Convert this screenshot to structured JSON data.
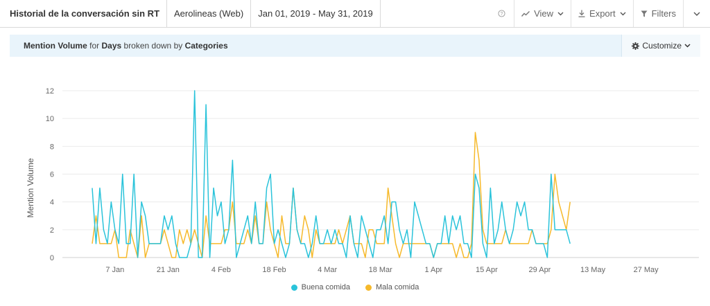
{
  "topbar": {
    "title": "Historial de la conversación sin RT",
    "source": "Aerolineas (Web)",
    "date_range": "Jan 01, 2019 - May 31, 2019",
    "help_icon": "?",
    "view_label": "View",
    "export_label": "Export",
    "filters_label": "Filters"
  },
  "subheader": {
    "metric": "Mention Volume",
    "for_text": "for",
    "period": "Days",
    "broken_text": "broken down by",
    "dimension": "Categories",
    "customize_label": "Customize"
  },
  "icons": {
    "help": "help-circle-icon",
    "view": "line-chart-icon",
    "export": "download-icon",
    "filters": "funnel-icon",
    "customize": "gear-icon",
    "chevron": "chevron-down-icon"
  },
  "chart_data": {
    "type": "line",
    "title": "",
    "xlabel": "",
    "ylabel": "Mention Volume",
    "ylim": [
      0,
      12
    ],
    "y_ticks": [
      0,
      2,
      4,
      6,
      8,
      10,
      12
    ],
    "x_start": "2019-01-01",
    "x_ticks": [
      {
        "label": "7 Jan",
        "date": "2019-01-07"
      },
      {
        "label": "21 Jan",
        "date": "2019-01-21"
      },
      {
        "label": "4 Feb",
        "date": "2019-02-04"
      },
      {
        "label": "18 Feb",
        "date": "2019-02-18"
      },
      {
        "label": "4 Mar",
        "date": "2019-03-04"
      },
      {
        "label": "18 Mar",
        "date": "2019-03-18"
      },
      {
        "label": "1 Apr",
        "date": "2019-04-01"
      },
      {
        "label": "15 Apr",
        "date": "2019-04-15"
      },
      {
        "label": "29 Apr",
        "date": "2019-04-29"
      },
      {
        "label": "13 May",
        "date": "2019-05-13"
      },
      {
        "label": "27 May",
        "date": "2019-05-27"
      }
    ],
    "grid": true,
    "legend_position": "bottom-center",
    "series": [
      {
        "name": "Buena comida",
        "color": "#2ac3da",
        "values": [
          5,
          1,
          5,
          2,
          1,
          4,
          2,
          1,
          6,
          1,
          1,
          6,
          0,
          4,
          3,
          1,
          1,
          1,
          1,
          3,
          2,
          3,
          1,
          0,
          0,
          0,
          1,
          12,
          0,
          0,
          11,
          0,
          5,
          3,
          4,
          1,
          2,
          7,
          0,
          1,
          2,
          3,
          1,
          4,
          1,
          1,
          5,
          6,
          1,
          2,
          1,
          0,
          1,
          5,
          2,
          1,
          1,
          0,
          1,
          3,
          1,
          1,
          2,
          1,
          2,
          1,
          1,
          0,
          3,
          1,
          0,
          3,
          2,
          1,
          0,
          2,
          2,
          3,
          1,
          4,
          4,
          2,
          1,
          2,
          0,
          4,
          3,
          2,
          1,
          1,
          0,
          1,
          1,
          3,
          1,
          3,
          2,
          3,
          1,
          1,
          0,
          6,
          5,
          1,
          0,
          5,
          1,
          2,
          4,
          2,
          1,
          2,
          4,
          3,
          4,
          2,
          2,
          1,
          1,
          1,
          0,
          6,
          2,
          2,
          2,
          2,
          1
        ]
      },
      {
        "name": "Mala comida",
        "color": "#f6b92b",
        "values": [
          1,
          3,
          1,
          1,
          1,
          1,
          2,
          0,
          0,
          0,
          2,
          1,
          0,
          3,
          0,
          1,
          1,
          1,
          1,
          2,
          1,
          0,
          0,
          2,
          1,
          2,
          1,
          2,
          1,
          0,
          3,
          1,
          1,
          1,
          1,
          2,
          2,
          4,
          1,
          1,
          1,
          2,
          1,
          3,
          1,
          1,
          4,
          2,
          1,
          0,
          3,
          1,
          1,
          5,
          2,
          1,
          3,
          2,
          0,
          2,
          1,
          1,
          1,
          1,
          1,
          2,
          1,
          2,
          3,
          1,
          1,
          1,
          0,
          2,
          2,
          1,
          1,
          1,
          5,
          3,
          1,
          0,
          1,
          1,
          1,
          1,
          1,
          1,
          1,
          1,
          0,
          1,
          1,
          1,
          1,
          1,
          0,
          1,
          0,
          0,
          1,
          9,
          7,
          2,
          1,
          1,
          1,
          1,
          1,
          2,
          1,
          1,
          1,
          1,
          1,
          1,
          2,
          1,
          1,
          1,
          1,
          2,
          6,
          4,
          3,
          2,
          4
        ]
      }
    ]
  }
}
